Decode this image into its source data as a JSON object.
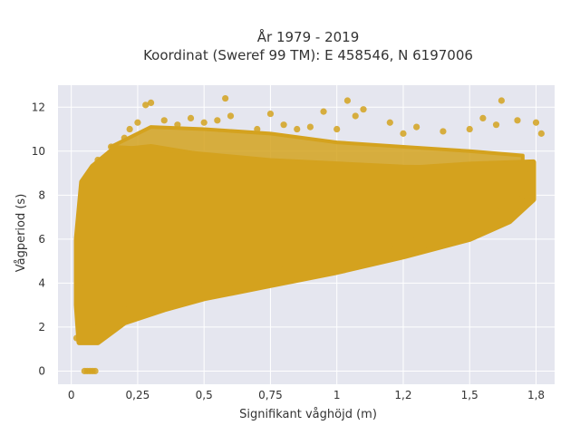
{
  "chart_data": {
    "type": "scatter",
    "title_lines": [
      "År 1979 - 2019",
      "Koordinat (Sweref 99 TM): E 458546, N 6197006"
    ],
    "xlabel": "Signifikant våghöjd (m)",
    "ylabel": "Vågperiod (s)",
    "xlim": [
      -0.05,
      1.82
    ],
    "ylim": [
      -0.6,
      13.0
    ],
    "x_ticks": [
      0,
      0.25,
      0.5,
      0.75,
      1,
      1.25,
      1.5,
      1.75
    ],
    "x_tick_labels": [
      "0",
      "0,25",
      "0,5",
      "0,75",
      "1",
      "1,2",
      "1,5",
      "1,8"
    ],
    "y_ticks": [
      0,
      2,
      4,
      6,
      8,
      10,
      12
    ],
    "y_tick_labels": [
      "0",
      "2",
      "4",
      "6",
      "8",
      "10",
      "12"
    ],
    "grid": true,
    "marker_color": "#D4A21E",
    "plot_background": "#E5E6EF",
    "series": [
      {
        "points": [
          [
            0.05,
            0.0
          ],
          [
            0.06,
            0.0
          ],
          [
            0.07,
            0.0
          ],
          [
            0.08,
            0.0
          ],
          [
            0.09,
            0.0
          ],
          [
            0.02,
            1.5
          ],
          [
            0.03,
            2.5
          ],
          [
            0.03,
            4.0
          ],
          [
            0.03,
            6.0
          ],
          [
            0.04,
            7.5
          ],
          [
            0.05,
            8.5
          ],
          [
            0.1,
            9.6
          ],
          [
            0.15,
            10.2
          ],
          [
            0.2,
            10.6
          ],
          [
            0.22,
            11.0
          ],
          [
            0.25,
            11.3
          ],
          [
            0.28,
            12.1
          ],
          [
            0.3,
            12.2
          ],
          [
            0.35,
            11.4
          ],
          [
            0.4,
            11.2
          ],
          [
            0.45,
            11.5
          ],
          [
            0.5,
            11.3
          ],
          [
            0.55,
            11.4
          ],
          [
            0.58,
            12.4
          ],
          [
            0.6,
            11.6
          ],
          [
            0.7,
            11.0
          ],
          [
            0.75,
            11.7
          ],
          [
            0.8,
            11.2
          ],
          [
            0.85,
            11.0
          ],
          [
            0.9,
            11.1
          ],
          [
            0.95,
            11.8
          ],
          [
            1.0,
            11.0
          ],
          [
            1.04,
            12.3
          ],
          [
            1.07,
            11.6
          ],
          [
            1.1,
            11.9
          ],
          [
            1.2,
            11.3
          ],
          [
            1.25,
            10.8
          ],
          [
            1.3,
            11.1
          ],
          [
            1.4,
            10.9
          ],
          [
            1.5,
            11.0
          ],
          [
            1.55,
            11.5
          ],
          [
            1.6,
            11.2
          ],
          [
            1.62,
            12.3
          ],
          [
            1.68,
            11.4
          ],
          [
            1.75,
            11.3
          ],
          [
            1.77,
            10.8
          ],
          [
            0.1,
            2.0
          ],
          [
            0.15,
            2.4
          ],
          [
            0.2,
            2.8
          ],
          [
            0.3,
            3.2
          ],
          [
            0.4,
            3.5
          ],
          [
            0.5,
            3.9
          ],
          [
            0.6,
            4.0
          ],
          [
            0.7,
            4.3
          ],
          [
            0.8,
            4.6
          ],
          [
            0.9,
            4.9
          ],
          [
            1.0,
            5.2
          ],
          [
            1.1,
            5.4
          ],
          [
            1.2,
            5.7
          ],
          [
            1.3,
            6.0
          ],
          [
            1.4,
            6.4
          ],
          [
            1.5,
            6.8
          ],
          [
            1.6,
            7.3
          ],
          [
            1.7,
            8.0
          ],
          [
            1.72,
            8.6
          ],
          [
            1.73,
            9.0
          ]
        ]
      }
    ]
  }
}
